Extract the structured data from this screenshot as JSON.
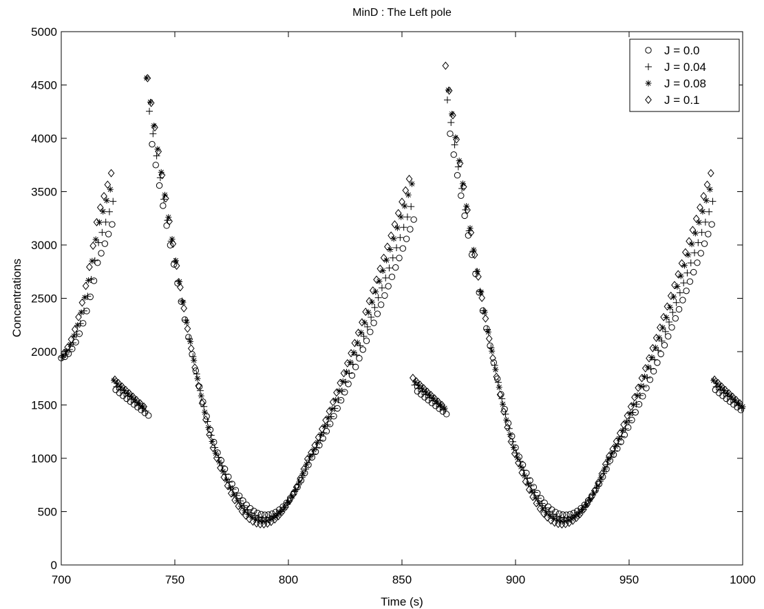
{
  "chart_data": {
    "type": "scatter",
    "title": "MinD : The Left pole",
    "xlabel": "Time (s)",
    "ylabel": "Concentrations",
    "xlim": [
      700,
      1000
    ],
    "ylim": [
      0,
      5000
    ],
    "xticks": [
      700,
      750,
      800,
      850,
      900,
      950,
      1000
    ],
    "yticks": [
      0,
      500,
      1000,
      1500,
      2000,
      2500,
      3000,
      3500,
      4000,
      4500,
      5000
    ],
    "grid": false,
    "legend": "top-right",
    "period": 132,
    "sample_step": 1.6,
    "series": [
      {
        "name": "J = 0.0",
        "marker": "circle",
        "trough_time": 790,
        "peak_time": 738.5,
        "min": 470,
        "peak": 4130,
        "start_value": 1940
      },
      {
        "name": "J = 0.04",
        "marker": "plus",
        "trough_time": 789.5,
        "peak_time": 738,
        "min": 440,
        "peak": 4360,
        "start_value": 1945
      },
      {
        "name": "J = 0.08",
        "marker": "asterisk",
        "trough_time": 789,
        "peak_time": 737.5,
        "min": 410,
        "peak": 4580,
        "start_value": 1950
      },
      {
        "name": "J = 0.1",
        "marker": "diamond",
        "trough_time": 788.5,
        "peak_time": 737,
        "min": 380,
        "peak": 4710,
        "start_value": 1960
      }
    ]
  }
}
